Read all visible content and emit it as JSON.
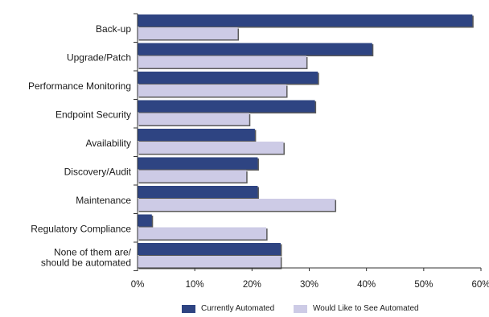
{
  "chart_data": {
    "type": "bar",
    "orientation": "horizontal",
    "title": "",
    "xlabel": "",
    "ylabel": "",
    "categories": [
      "Back-up",
      "Upgrade/Patch",
      "Performance Monitoring",
      "Endpoint Security",
      "Availability",
      "Discovery/Audit",
      "Maintenance",
      "Regulatory Compliance",
      "None of them are/\nshould be automated"
    ],
    "series": [
      {
        "name": "Currently Automated",
        "color": "#2e4482",
        "values": [
          58.5,
          41,
          31.5,
          31,
          20.5,
          21,
          21,
          2.5,
          25
        ]
      },
      {
        "name": "Would Like to See Automated",
        "color": "#cdcbe6",
        "values": [
          17.5,
          29.5,
          26,
          19.5,
          25.5,
          19,
          34.5,
          22.5,
          25
        ]
      }
    ],
    "xlim": [
      0,
      60
    ],
    "xticks": [
      "0%",
      "10%",
      "20%",
      "30%",
      "40%",
      "50%",
      "60%"
    ],
    "grid": false,
    "legend_position": "bottom"
  }
}
